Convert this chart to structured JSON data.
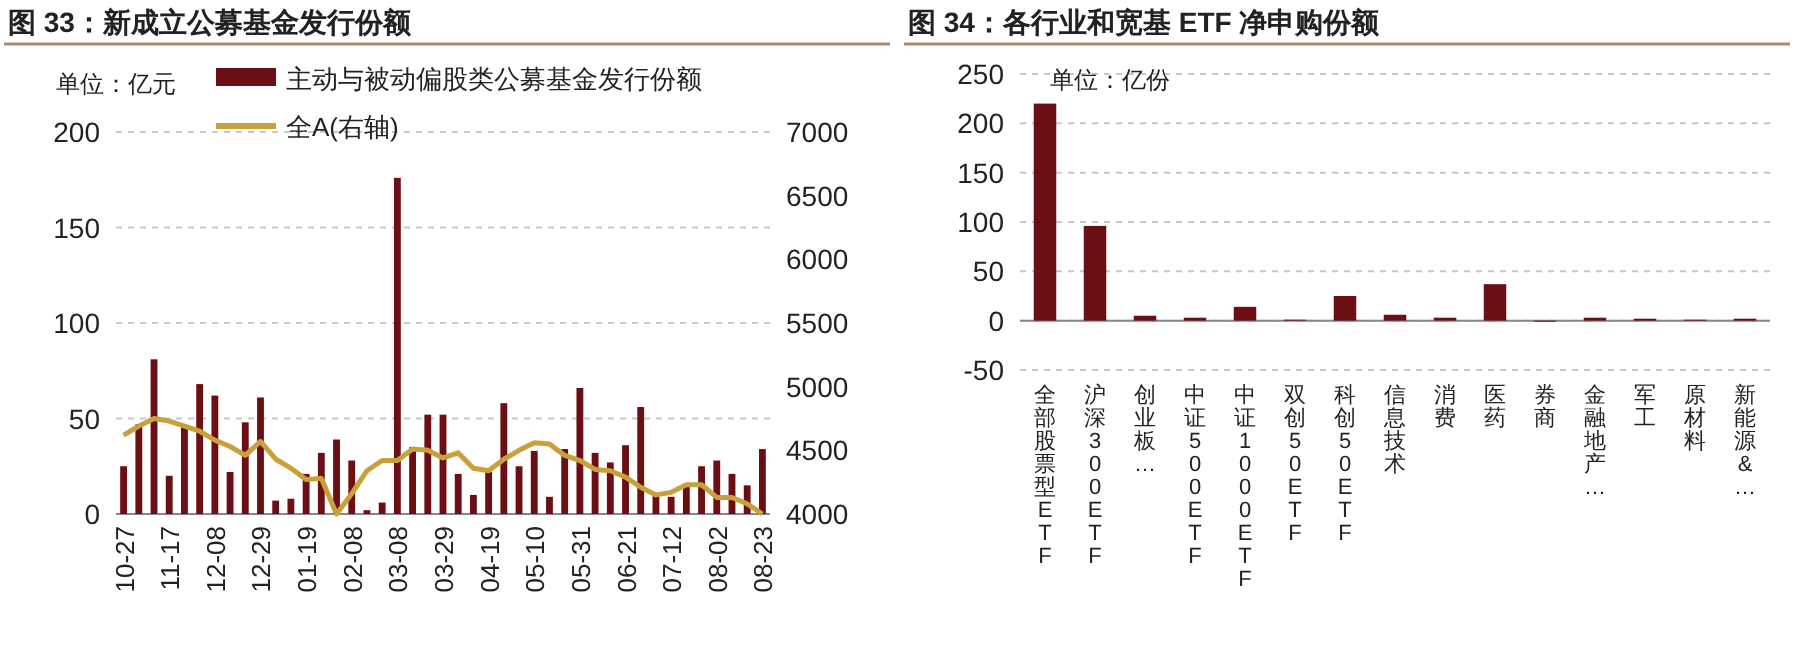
{
  "chart_data": [
    {
      "type": "bar",
      "title": "图 33：新成立公募基金发行份额",
      "annotations": [
        "单位：亿元"
      ],
      "categories": [
        "10-27",
        null,
        null,
        "11-17",
        null,
        null,
        "12-08",
        null,
        null,
        "12-29",
        null,
        null,
        "01-19",
        null,
        null,
        "02-08",
        null,
        null,
        "03-08",
        null,
        null,
        "03-29",
        null,
        null,
        "04-19",
        null,
        null,
        "05-10",
        null,
        null,
        "05-31",
        null,
        null,
        "06-21",
        null,
        null,
        "07-12",
        null,
        null,
        "08-02",
        null,
        null,
        "08-23"
      ],
      "series": [
        {
          "name": "主动与被动偏股类公募基金发行份额",
          "type": "bar",
          "color": "#6b0f14",
          "values": [
            25,
            47,
            81,
            20,
            46,
            68,
            62,
            22,
            48,
            61,
            7,
            8,
            21,
            32,
            39,
            28,
            2,
            6,
            176,
            35,
            52,
            52,
            21,
            10,
            22,
            58,
            25,
            33,
            9,
            34,
            66,
            32,
            27,
            36,
            56,
            10,
            9,
            15,
            25,
            28,
            21,
            15,
            34
          ]
        },
        {
          "name": "全A(右轴)",
          "type": "line",
          "axis": "y2",
          "color": "#c8a03c",
          "values": [
            4620,
            4690,
            4750,
            4730,
            4690,
            4650,
            4580,
            4530,
            4460,
            4570,
            4430,
            4360,
            4270,
            4280,
            4000,
            4160,
            4340,
            4420,
            4420,
            4510,
            4500,
            4440,
            4480,
            4360,
            4340,
            4430,
            4500,
            4560,
            4550,
            4460,
            4420,
            4350,
            4340,
            4290,
            4210,
            4150,
            4170,
            4230,
            4230,
            4130,
            4130,
            4080,
            4000
          ]
        }
      ],
      "ylim": [
        0,
        200
      ],
      "yticks": [
        0,
        50,
        100,
        150,
        200
      ],
      "y2lim": [
        4000,
        7000
      ],
      "y2ticks": [
        4000,
        4500,
        5000,
        5500,
        6000,
        6500,
        7000
      ],
      "grid": "y",
      "legend": "top",
      "marker": "none",
      "line_style": "solid"
    },
    {
      "type": "bar",
      "title": "图 34：各行业和宽基 ETF 净申购份额",
      "annotations": [
        "单位：亿份"
      ],
      "categories": [
        "全部股票型ETF",
        "沪深300ETF",
        "创业板…",
        "中证500ETF",
        "中证1000ETF",
        "双创50ETF",
        "科创50ETF",
        "信息技术",
        "消费",
        "医药",
        "券商",
        "金融地产…",
        "军工",
        "原材料",
        "新能源&…"
      ],
      "values": [
        220,
        96,
        5,
        3,
        14,
        1,
        25,
        6,
        3,
        37,
        -1,
        3,
        2,
        1,
        2
      ],
      "color": "#6b0f14",
      "ylim": [
        -50,
        250
      ],
      "yticks": [
        -50,
        0,
        50,
        100,
        150,
        200,
        250
      ],
      "grid": "y"
    }
  ]
}
